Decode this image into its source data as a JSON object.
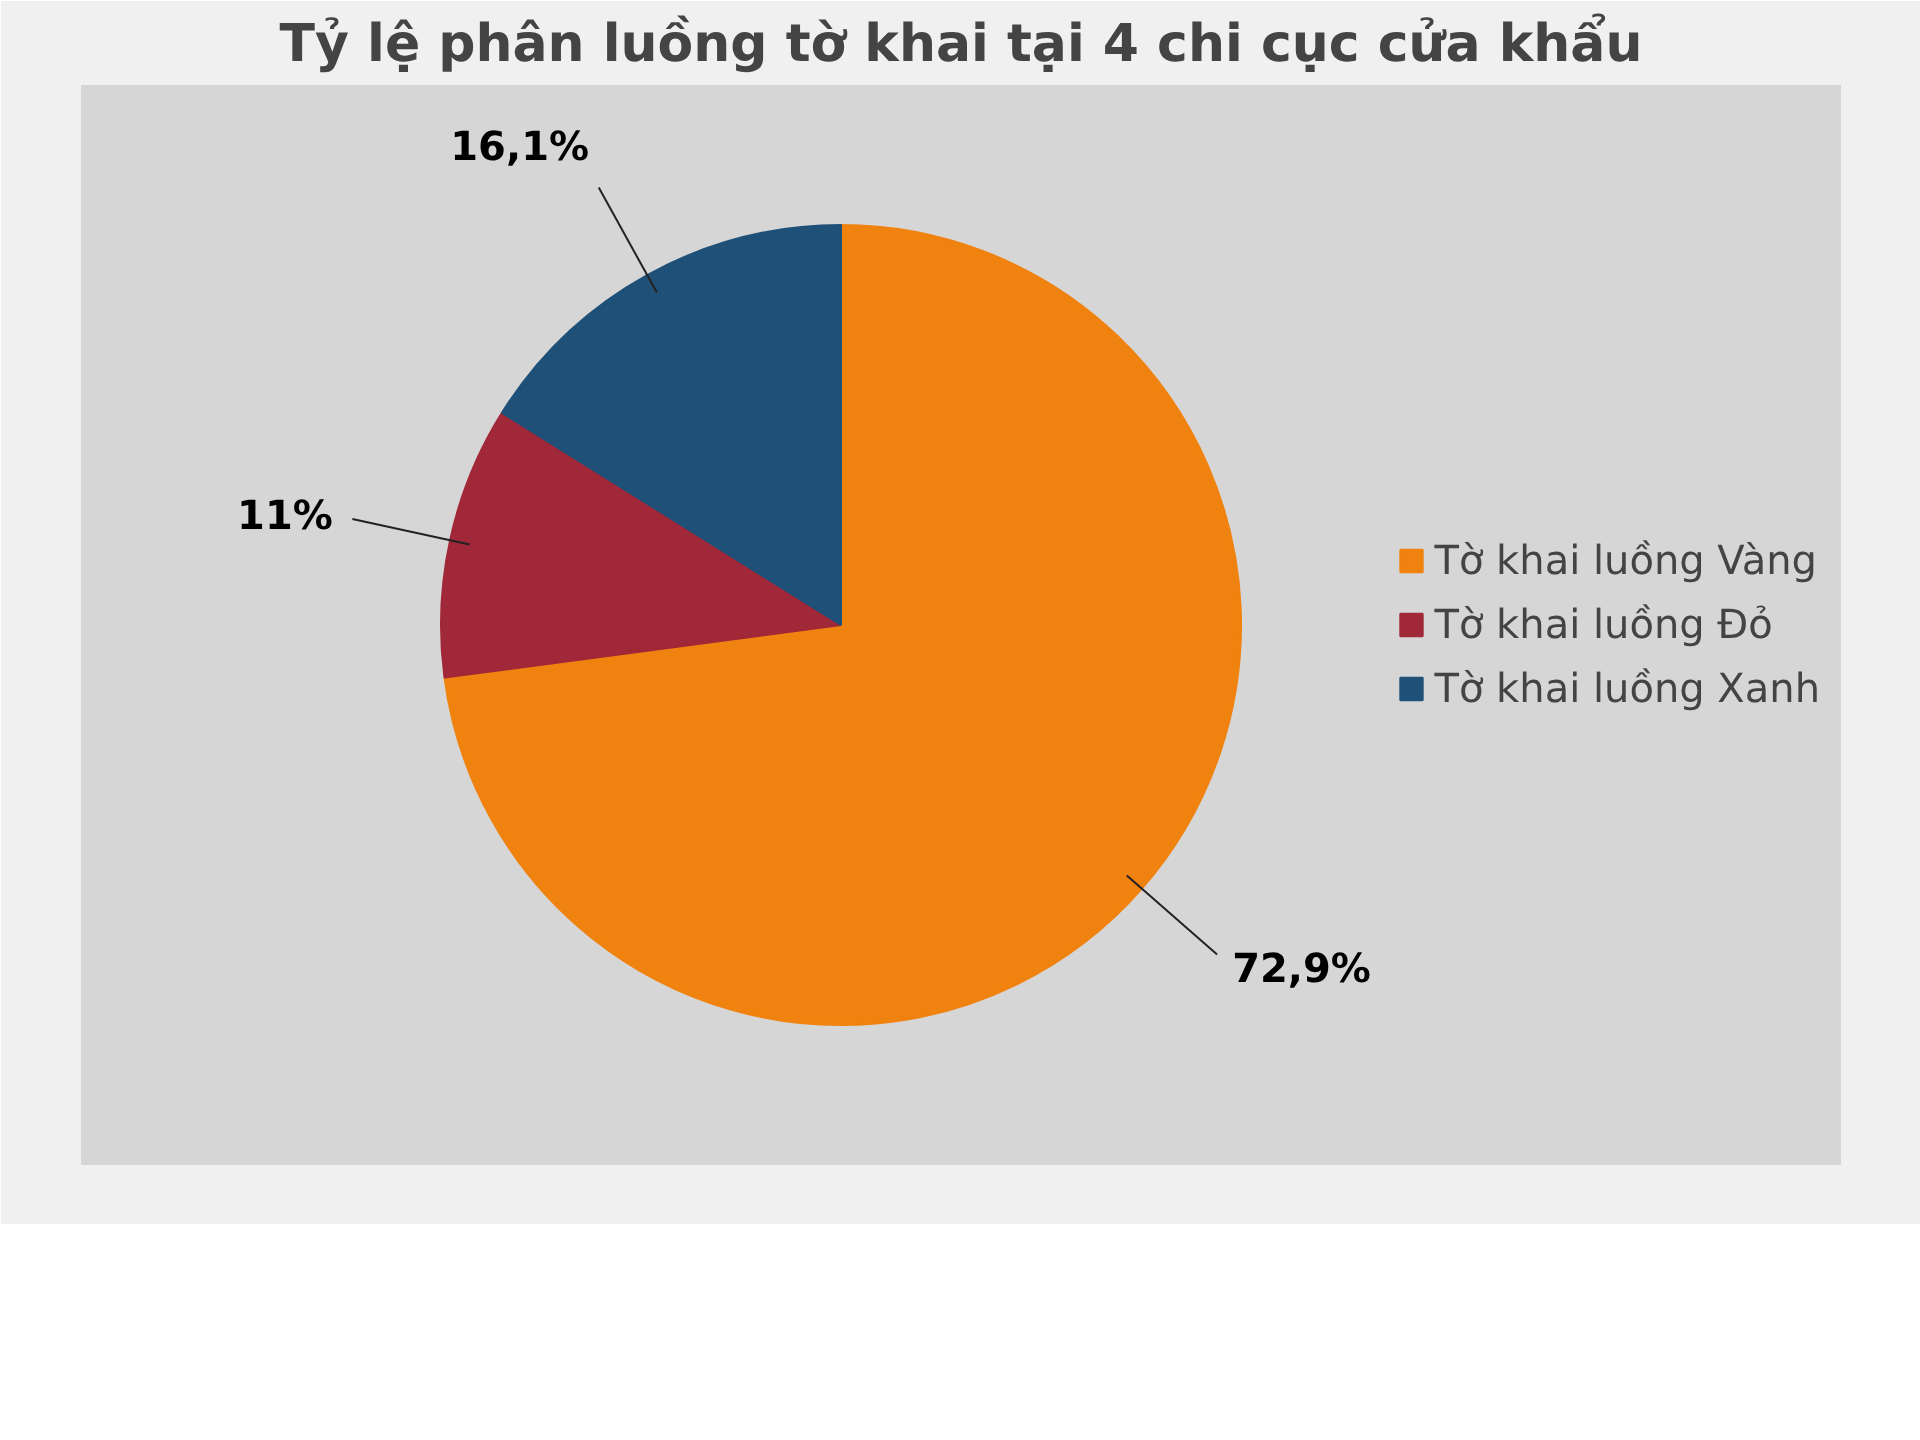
{
  "chart_data": {
    "type": "pie",
    "title": "Tỷ lệ phân luồng tờ khai tại 4 chi cục cửa khẩu",
    "categories": [
      "Tờ khai luồng Vàng",
      "Tờ khai luồng Đỏ",
      "Tờ khai luồng Xanh"
    ],
    "values": [
      72.9,
      11,
      16.1
    ],
    "colors": [
      "#f0820f",
      "#a02838",
      "#1f5078"
    ],
    "value_labels": [
      "72,9%",
      "11%",
      "16,1%"
    ],
    "legend": "right"
  }
}
